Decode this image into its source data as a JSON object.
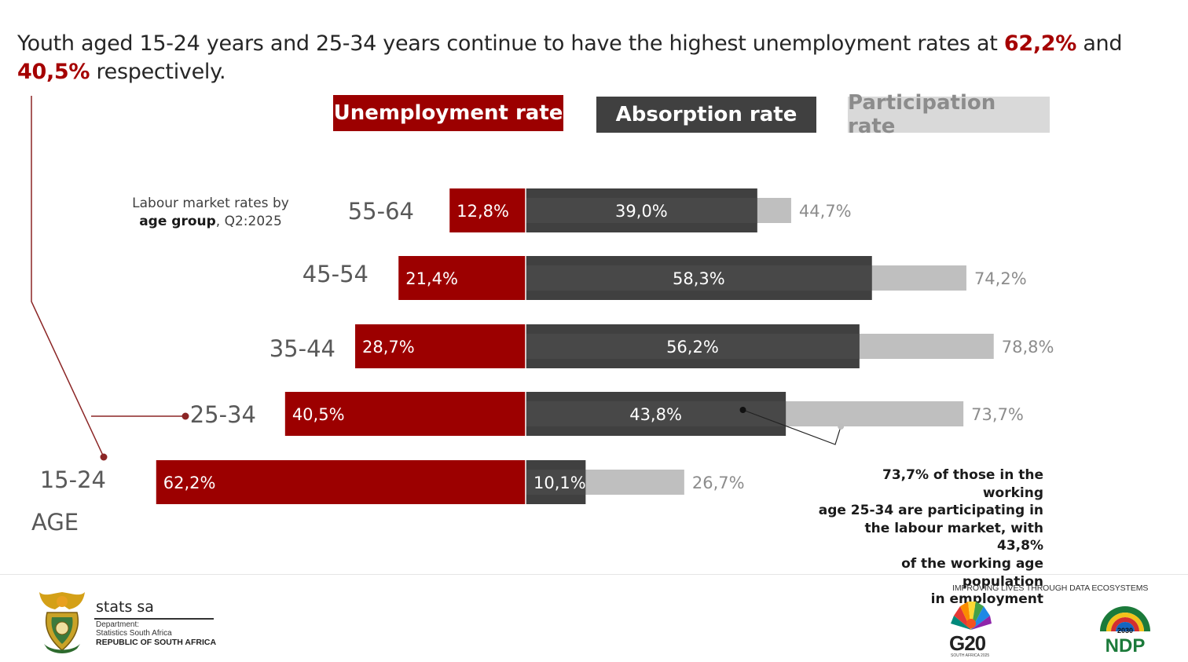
{
  "headline": {
    "prefix": "Youth aged 15-24 years and 25-34 years continue to have the highest unemployment rates at ",
    "value1": "62,2%",
    "middle": " and ",
    "value2": "40,5%",
    "suffix": " respectively."
  },
  "legend": {
    "unemployment": "Unemployment rate",
    "absorption": "Absorption rate",
    "participation": "Participation rate"
  },
  "colors": {
    "unemployment": "#9c0000",
    "absorption": "#404040",
    "absorption_band": "#595959",
    "participation": "#bfbfbf",
    "participation_label": "#8c8c8c",
    "connector": "#8b2525"
  },
  "subtitle": {
    "line1": "Labour market rates by",
    "bold": "age group",
    "rest": ", Q2:2025"
  },
  "chart_data": {
    "type": "bar",
    "title": "Labour market rates by age group, Q2:2025",
    "xlabel": "",
    "ylabel": "AGE",
    "categories": [
      "55-64",
      "45-54",
      "35-44",
      "25-34",
      "15-24"
    ],
    "series": [
      {
        "name": "Unemployment rate",
        "values": [
          12.8,
          21.4,
          28.7,
          40.5,
          62.2
        ],
        "labels": [
          "12,8%",
          "21,4%",
          "28,7%",
          "40,5%",
          "62,2%"
        ]
      },
      {
        "name": "Absorption rate",
        "values": [
          39.0,
          58.3,
          56.2,
          43.8,
          10.1
        ],
        "labels": [
          "39,0%",
          "58,3%",
          "56,2%",
          "43,8%",
          "10,1%"
        ]
      },
      {
        "name": "Participation rate",
        "values": [
          44.7,
          74.2,
          78.8,
          73.7,
          26.7
        ],
        "labels": [
          "44,7%",
          "74,2%",
          "78,8%",
          "73,7%",
          "26,7%"
        ]
      }
    ]
  },
  "annotation": {
    "lines": [
      "73,7% of those in the working",
      "age  25-34 are participating in",
      "the labour market, with 43,8%",
      "of  the working age population",
      "in employment"
    ]
  },
  "footer": {
    "org_name": "stats sa",
    "dept_line1": "Department:",
    "dept_line2": "Statistics South Africa",
    "country": "REPUBLIC OF SOUTH AFRICA",
    "tagline": "IMPROVING LIVES THROUGH DATA ECOSYSTEMS",
    "g20": "G20",
    "g20_sub": "SOUTH AFRICA 2025",
    "ndp": "NDP",
    "ndp_year": "2030"
  }
}
